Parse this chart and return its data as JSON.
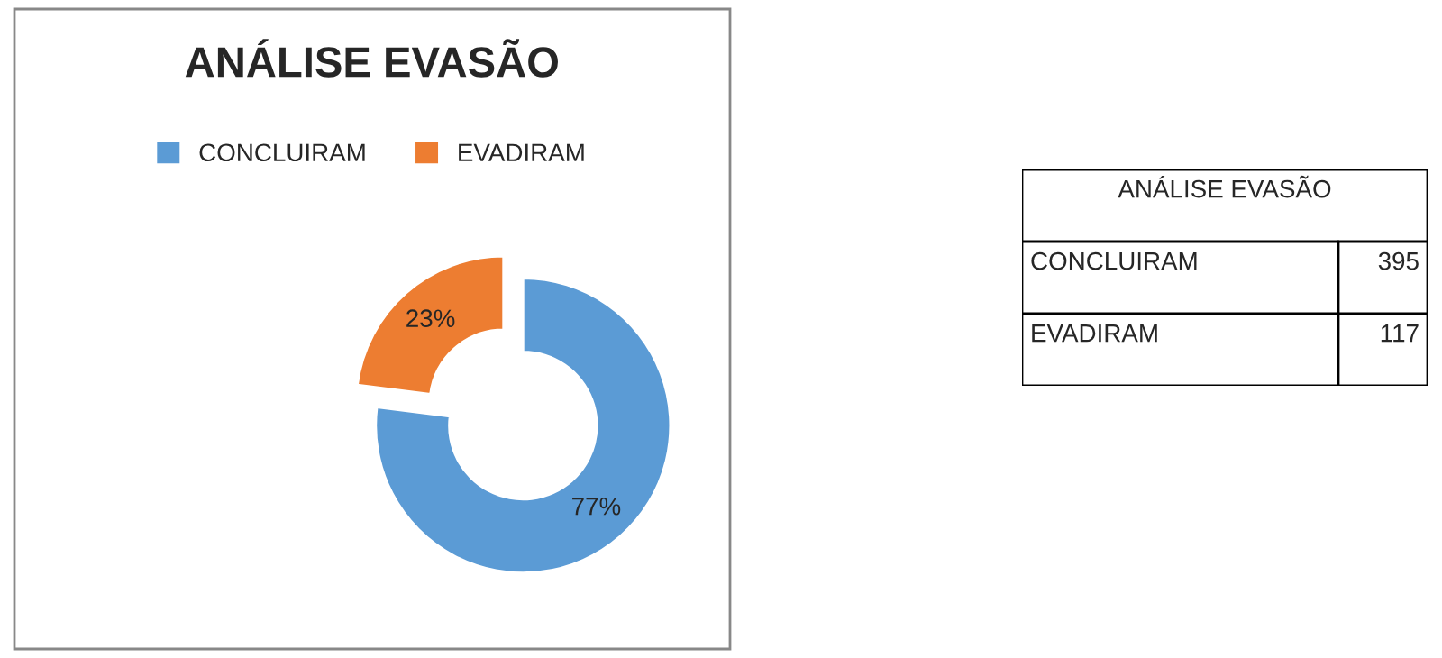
{
  "chart_data": [
    {
      "type": "donut",
      "title": "ANÁLISE EVASÃO",
      "categories": [
        "CONCLUIRAM",
        "EVADIRAM"
      ],
      "values": [
        77,
        23
      ],
      "colors": [
        "#5b9bd5",
        "#ed7d31"
      ],
      "value_labels": [
        "77%",
        "23%"
      ],
      "legend": "top"
    },
    {
      "type": "other",
      "title": "ANÁLISE EVASÃO",
      "categories": [
        "CONCLUIRAM",
        "EVADIRAM"
      ],
      "values": [
        395,
        117
      ],
      "data_labels": true
    }
  ]
}
